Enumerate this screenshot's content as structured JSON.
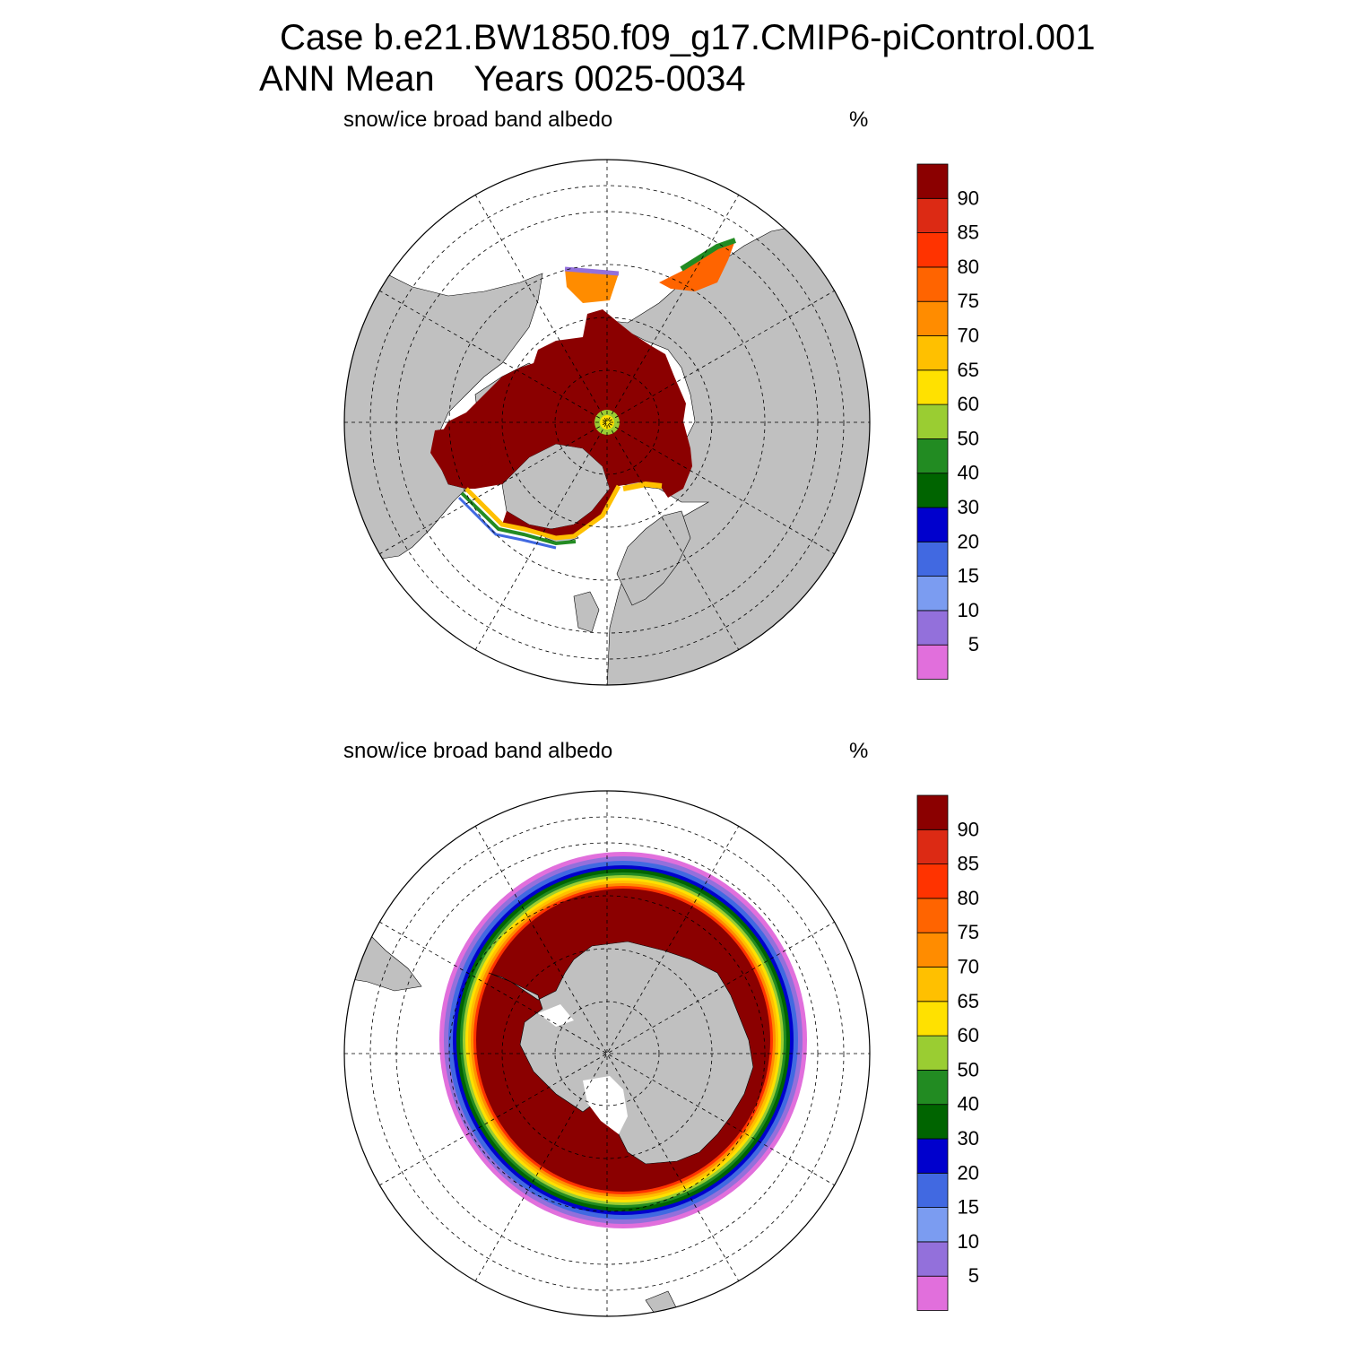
{
  "title": {
    "line1": "Case b.e21.BW1850.f09_g17.CMIP6-piControl.001",
    "line2": "ANN Mean    Years 0025-0034"
  },
  "colorbar": {
    "levels": [
      "5",
      "10",
      "15",
      "20",
      "30",
      "40",
      "50",
      "60",
      "65",
      "70",
      "75",
      "80",
      "85",
      "90"
    ],
    "colors": [
      "#e16fdc",
      "#9370db",
      "#7b9cf1",
      "#4169e1",
      "#0000cd",
      "#006400",
      "#228b22",
      "#9acd32",
      "#ffe100",
      "#ffc000",
      "#ff8c00",
      "#ff6400",
      "#ff3300",
      "#dc2a14",
      "#8b0000"
    ]
  },
  "colors": {
    "land": "#c0c0c0",
    "ocean": "#ffffff",
    "ice_core": "#8b0000"
  },
  "panels": [
    {
      "id": "north",
      "hemisphere": "Northern Hemisphere",
      "variable": "snow/ice broad band albedo",
      "units": "%"
    },
    {
      "id": "south",
      "hemisphere": "Southern Hemisphere",
      "variable": "snow/ice broad band albedo",
      "units": "%"
    }
  ]
}
